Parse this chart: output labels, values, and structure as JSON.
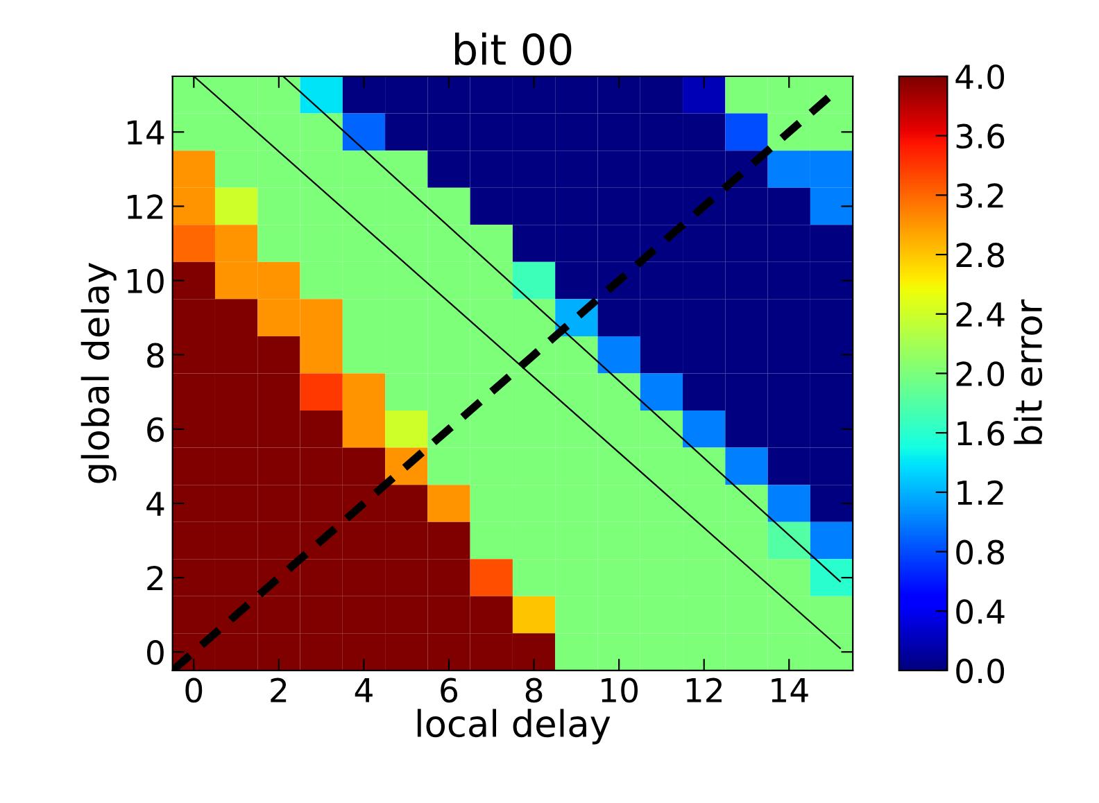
{
  "chart_data": {
    "type": "heatmap",
    "title": "bit 00",
    "xlabel": "local delay",
    "ylabel": "global delay",
    "clabel": "bit error",
    "xlim": [
      -0.5,
      15.5
    ],
    "ylim": [
      -0.5,
      15.5
    ],
    "xticks": [
      0,
      2,
      4,
      6,
      8,
      10,
      12,
      14
    ],
    "yticks": [
      0,
      2,
      4,
      6,
      8,
      10,
      12,
      14
    ],
    "clim": [
      0,
      4
    ],
    "cticks": [
      {
        "value": 0,
        "label": "0.0"
      },
      {
        "value": 0.4,
        "label": "0.4"
      },
      {
        "value": 0.8,
        "label": "0.8"
      },
      {
        "value": 1.2,
        "label": "1.2"
      },
      {
        "value": 1.6,
        "label": "1.6"
      },
      {
        "value": 2.0,
        "label": "2.0"
      },
      {
        "value": 2.4,
        "label": "2.4"
      },
      {
        "value": 2.8,
        "label": "2.8"
      },
      {
        "value": 3.2,
        "label": "3.2"
      },
      {
        "value": 3.6,
        "label": "3.6"
      },
      {
        "value": 4.0,
        "label": "4.0"
      }
    ],
    "grid": false,
    "cells": [
      [
        2,
        2,
        2,
        1.4,
        0,
        0,
        0,
        0,
        0,
        0,
        0,
        0,
        0.2,
        2,
        2,
        2
      ],
      [
        2,
        2,
        2,
        2,
        0.9,
        0,
        0,
        0,
        0,
        0,
        0,
        0,
        0,
        0.8,
        2,
        2
      ],
      [
        3,
        2,
        2,
        2,
        2,
        2,
        0,
        0,
        0,
        0,
        0,
        0,
        0,
        0,
        1,
        1
      ],
      [
        3,
        2.4,
        2,
        2,
        2,
        2,
        2,
        0,
        0,
        0,
        0,
        0,
        0,
        0,
        0,
        1
      ],
      [
        3.2,
        3,
        2,
        2,
        2,
        2,
        2,
        2,
        0,
        0,
        0,
        0,
        0,
        0,
        0,
        0
      ],
      [
        4,
        3,
        3,
        2,
        2,
        2,
        2,
        2,
        1.7,
        0,
        0,
        0,
        0,
        0,
        0,
        0
      ],
      [
        4,
        4,
        3,
        3,
        2,
        2,
        2,
        2,
        2,
        1.2,
        0,
        0,
        0,
        0,
        0,
        0
      ],
      [
        4,
        4,
        4,
        3,
        2,
        2,
        2,
        2,
        2,
        2,
        1,
        0,
        0,
        0,
        0,
        0
      ],
      [
        4,
        4,
        4,
        3.4,
        3,
        2,
        2,
        2,
        2,
        2,
        2,
        1,
        0,
        0,
        0,
        0
      ],
      [
        4,
        4,
        4,
        4,
        3,
        2.4,
        2,
        2,
        2,
        2,
        2,
        2,
        1,
        0,
        0,
        0
      ],
      [
        4,
        4,
        4,
        4,
        4,
        3,
        2,
        2,
        2,
        2,
        2,
        2,
        2,
        1,
        0,
        0
      ],
      [
        4,
        4,
        4,
        4,
        4,
        4,
        3,
        2,
        2,
        2,
        2,
        2,
        2,
        2,
        1,
        0
      ],
      [
        4,
        4,
        4,
        4,
        4,
        4,
        4,
        2,
        2,
        2,
        2,
        2,
        2,
        2,
        1.8,
        1
      ],
      [
        4,
        4,
        4,
        4,
        4,
        4,
        4,
        3.3,
        2,
        2,
        2,
        2,
        2,
        2,
        2,
        1.6
      ],
      [
        4,
        4,
        4,
        4,
        4,
        4,
        4,
        4,
        2.8,
        2,
        2,
        2,
        2,
        2,
        2,
        2
      ],
      [
        4,
        4,
        4,
        4,
        4,
        4,
        4,
        4,
        4,
        2,
        2,
        2,
        2,
        2,
        2,
        2
      ]
    ],
    "series": [
      {
        "type": "line",
        "x": [
          0,
          15.2
        ],
        "values": [
          15.5,
          0.1
        ],
        "color": "#000000",
        "line_style": "solid"
      },
      {
        "type": "line",
        "x": [
          2.1,
          15.2
        ],
        "values": [
          15.5,
          1.9
        ],
        "color": "#000000",
        "line_style": "solid"
      },
      {
        "type": "line",
        "x": [
          -0.5,
          15
        ],
        "values": [
          -0.5,
          15
        ],
        "color": "#000000",
        "line_style": "dashed"
      }
    ]
  }
}
